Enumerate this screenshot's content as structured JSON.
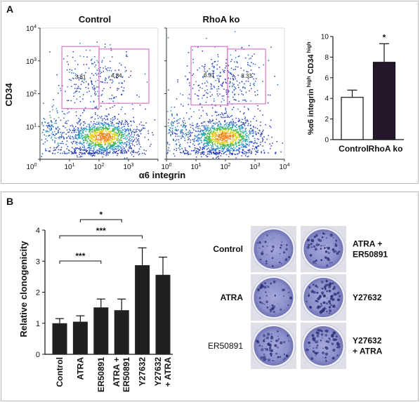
{
  "panel_labels": {
    "a": "A",
    "b": "B"
  },
  "colors": {
    "gate": "#d76bc3",
    "bar_control_fill": "#ffffff",
    "bar_rhoa_fill": "#25172b",
    "bar_b_fill": "#202020",
    "plate_colony": "#2f307a",
    "panel_border": "#b8b8b8"
  },
  "chart_data": [
    {
      "type": "scatter",
      "title": "Control",
      "xlabel": "α6 integrin",
      "ylabel": "CD34",
      "xscale": "log",
      "yscale": "log",
      "xlim": [
        1,
        10000
      ],
      "ylim": [
        1,
        10000
      ],
      "tick_base": "10",
      "x_tick_exponents": [
        "0",
        "1",
        "2",
        "3"
      ],
      "y_tick_exponents": [
        "1",
        "2",
        "3",
        "4"
      ],
      "gates": [
        {
          "label": "3.81",
          "x": [
            5.5,
            100
          ],
          "y": [
            35,
            2750
          ]
        },
        {
          "label": "4.84",
          "x": [
            100,
            4900
          ],
          "y": [
            51,
            2290
          ]
        }
      ]
    },
    {
      "type": "scatter",
      "title": "RhoA ko",
      "xscale": "log",
      "yscale": "log",
      "xlim": [
        1,
        10000
      ],
      "ylim": [
        1,
        10000
      ],
      "tick_base": "10",
      "x_tick_exponents": [
        "0",
        "1",
        "2",
        "3",
        "4"
      ],
      "gates": [
        {
          "label": "6.51",
          "x": [
            6.8,
            117
          ],
          "y": [
            45,
            2750
          ]
        },
        {
          "label": "8.33",
          "x": [
            117,
            2290
          ],
          "y": [
            49,
            2290
          ]
        }
      ]
    },
    {
      "type": "bar",
      "categories": [
        "Control",
        "RhoA ko"
      ],
      "values": [
        4.1,
        7.5
      ],
      "error": [
        0.7,
        1.8
      ],
      "ylabel_parts": [
        {
          "text": "%α6 integrin",
          "sup": false
        },
        {
          "text": "high",
          "sup": true
        },
        {
          "text": "CD34",
          "sup": false
        },
        {
          "text": "high",
          "sup": true
        }
      ],
      "ylim": [
        0,
        10
      ],
      "yticks": [
        0,
        2,
        4,
        6,
        8,
        10
      ],
      "annotations": [
        {
          "text": "*",
          "category": 1
        }
      ]
    },
    {
      "type": "bar",
      "categories": [
        [
          "Control"
        ],
        [
          "ATRA"
        ],
        [
          "ER50891"
        ],
        [
          "ATRA +",
          "ER50891"
        ],
        [
          "Y27632"
        ],
        [
          "Y27632",
          "+ ATRA"
        ]
      ],
      "values": [
        1.0,
        1.05,
        1.51,
        1.42,
        2.87,
        2.56
      ],
      "error": [
        0.15,
        0.19,
        0.27,
        0.36,
        0.56,
        0.57
      ],
      "ylabel": "Relative clonogenicity",
      "ylim": [
        0,
        4
      ],
      "yticks": [
        0,
        1,
        2,
        3,
        4
      ],
      "significance": [
        {
          "text": "*",
          "from": 1,
          "to": 3
        },
        {
          "text": "***",
          "from": 0,
          "to": 4
        },
        {
          "text": "***",
          "from": 0,
          "to": 2
        }
      ]
    }
  ],
  "plates": {
    "left_labels": [
      [
        "Control"
      ],
      [
        "ATRA"
      ],
      [
        "ER50891"
      ]
    ],
    "right_labels": [
      [
        "ATRA +",
        "ER50891"
      ],
      [
        "Y27632"
      ],
      [
        "Y27632",
        "+ ATRA"
      ]
    ]
  }
}
